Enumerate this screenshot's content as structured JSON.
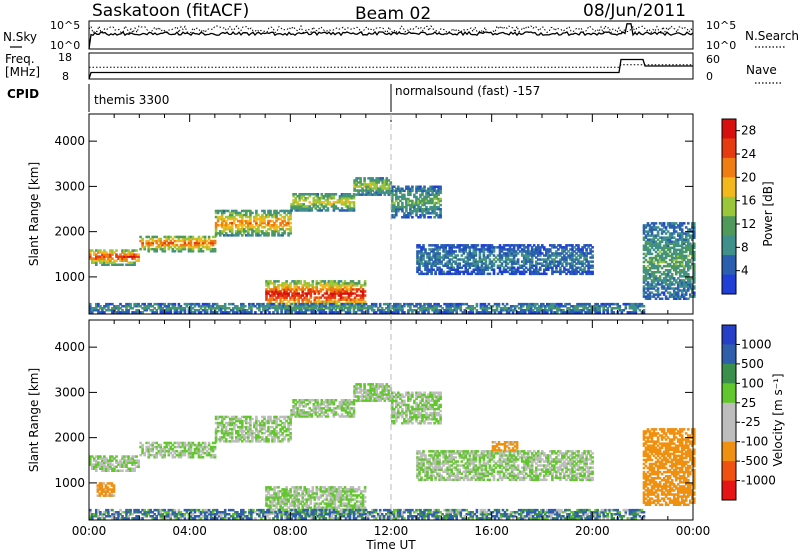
{
  "header": {
    "station": "Saskatoon (fitACF)",
    "beam": "Beam 02",
    "date": "08/Jun/2011"
  },
  "strip_panels": {
    "nsky": {
      "label": "N.Sky",
      "ticks": [
        "10^5",
        "10^0"
      ],
      "right_label": "N.Search",
      "right_ticks": [
        "10^5",
        "10^0"
      ]
    },
    "freq": {
      "label_line1": "Freq.",
      "label_line2": "[MHz]",
      "ticks": [
        "18",
        "8"
      ],
      "right_label": "Nave",
      "right_ticks": [
        "60",
        "0"
      ]
    },
    "cpid": {
      "label": "CPID",
      "segments": [
        "themis 3300",
        "normalsound (fast) -157"
      ]
    }
  },
  "colors": {
    "power_scale": [
      "#1f3fd6",
      "#2a5fb0",
      "#3f8f8a",
      "#4f9a5a",
      "#9ac73a",
      "#f2b81c",
      "#ef7d12",
      "#e63a10",
      "#d70f0f"
    ],
    "velocity_scale": [
      "#e61414",
      "#f05010",
      "#f09010",
      "#bdbdbd",
      "#bdbdbd",
      "#62c72c",
      "#3a8f4a",
      "#2f5faa",
      "#2540c6"
    ]
  },
  "chart_data": [
    {
      "type": "heatmap",
      "title": "Power",
      "xlabel": "Time UT",
      "ylabel": "Slant Range [km]",
      "x_ticks": [
        "00:00",
        "04:00",
        "08:00",
        "12:00",
        "16:00",
        "20:00",
        "00:00"
      ],
      "xlim_hours": [
        0,
        24
      ],
      "y_ticks": [
        1000,
        2000,
        3000,
        4000
      ],
      "ylim": [
        180,
        4600
      ],
      "colorbar": {
        "label": "Power [dB]",
        "ticks": [
          4,
          8,
          12,
          16,
          20,
          24,
          28
        ],
        "range": [
          0,
          30
        ]
      },
      "echo_bands": [
        {
          "from_h": 0.0,
          "to_h": 2.0,
          "range_km": [
            1250,
            1600
          ],
          "value": 26
        },
        {
          "from_h": 2.0,
          "to_h": 5.0,
          "range_km": [
            1550,
            1900
          ],
          "value": 24
        },
        {
          "from_h": 5.0,
          "to_h": 8.0,
          "range_km": [
            1900,
            2450
          ],
          "value": 22
        },
        {
          "from_h": 8.0,
          "to_h": 10.5,
          "range_km": [
            2450,
            2850
          ],
          "value": 18
        },
        {
          "from_h": 10.5,
          "to_h": 12.0,
          "range_km": [
            2800,
            3200
          ],
          "value": 16
        },
        {
          "from_h": 12.0,
          "to_h": 14.0,
          "range_km": [
            2300,
            3000
          ],
          "value": 12
        },
        {
          "from_h": 13.0,
          "to_h": 20.0,
          "range_km": [
            1050,
            1700
          ],
          "value": 8
        },
        {
          "from_h": 7.0,
          "to_h": 11.0,
          "range_km": [
            300,
            900
          ],
          "value": 28
        },
        {
          "from_h": 0.0,
          "to_h": 22.0,
          "range_km": [
            200,
            400
          ],
          "value": 10
        },
        {
          "from_h": 22.0,
          "to_h": 24.0,
          "range_km": [
            500,
            2200
          ],
          "value": 12
        }
      ]
    },
    {
      "type": "heatmap",
      "title": "Velocity",
      "xlabel": "Time UT",
      "ylabel": "Slant Range [km]",
      "x_ticks": [
        "00:00",
        "04:00",
        "08:00",
        "12:00",
        "16:00",
        "20:00",
        "00:00"
      ],
      "xlim_hours": [
        0,
        24
      ],
      "y_ticks": [
        1000,
        2000,
        3000,
        4000
      ],
      "ylim": [
        180,
        4600
      ],
      "colorbar": {
        "label": "Velocity [m s⁻¹]",
        "ticks": [
          1000,
          500,
          100,
          25,
          -25,
          -100,
          -500,
          -1000
        ]
      },
      "echo_bands": [
        {
          "from_h": 0.0,
          "to_h": 2.0,
          "range_km": [
            1250,
            1600
          ],
          "value": 0
        },
        {
          "from_h": 2.0,
          "to_h": 5.0,
          "range_km": [
            1550,
            1900
          ],
          "value": 0
        },
        {
          "from_h": 5.0,
          "to_h": 8.0,
          "range_km": [
            1900,
            2450
          ],
          "value": 0
        },
        {
          "from_h": 8.0,
          "to_h": 10.5,
          "range_km": [
            2450,
            2850
          ],
          "value": 0
        },
        {
          "from_h": 10.5,
          "to_h": 12.0,
          "range_km": [
            2800,
            3200
          ],
          "value": 0
        },
        {
          "from_h": 12.0,
          "to_h": 14.0,
          "range_km": [
            2300,
            3000
          ],
          "value": 0
        },
        {
          "from_h": 13.0,
          "to_h": 20.0,
          "range_km": [
            1050,
            1700
          ],
          "value": 0
        },
        {
          "from_h": 7.0,
          "to_h": 11.0,
          "range_km": [
            300,
            900
          ],
          "value": 0
        },
        {
          "from_h": 0.0,
          "to_h": 22.0,
          "range_km": [
            200,
            400
          ],
          "value": 100
        },
        {
          "from_h": 22.0,
          "to_h": 24.0,
          "range_km": [
            500,
            2200
          ],
          "value": -300
        },
        {
          "from_h": 16.0,
          "to_h": 17.0,
          "range_km": [
            1700,
            1900
          ],
          "value": -200
        },
        {
          "from_h": 0.3,
          "to_h": 1.0,
          "range_km": [
            700,
            1000
          ],
          "value": -200
        }
      ]
    }
  ]
}
